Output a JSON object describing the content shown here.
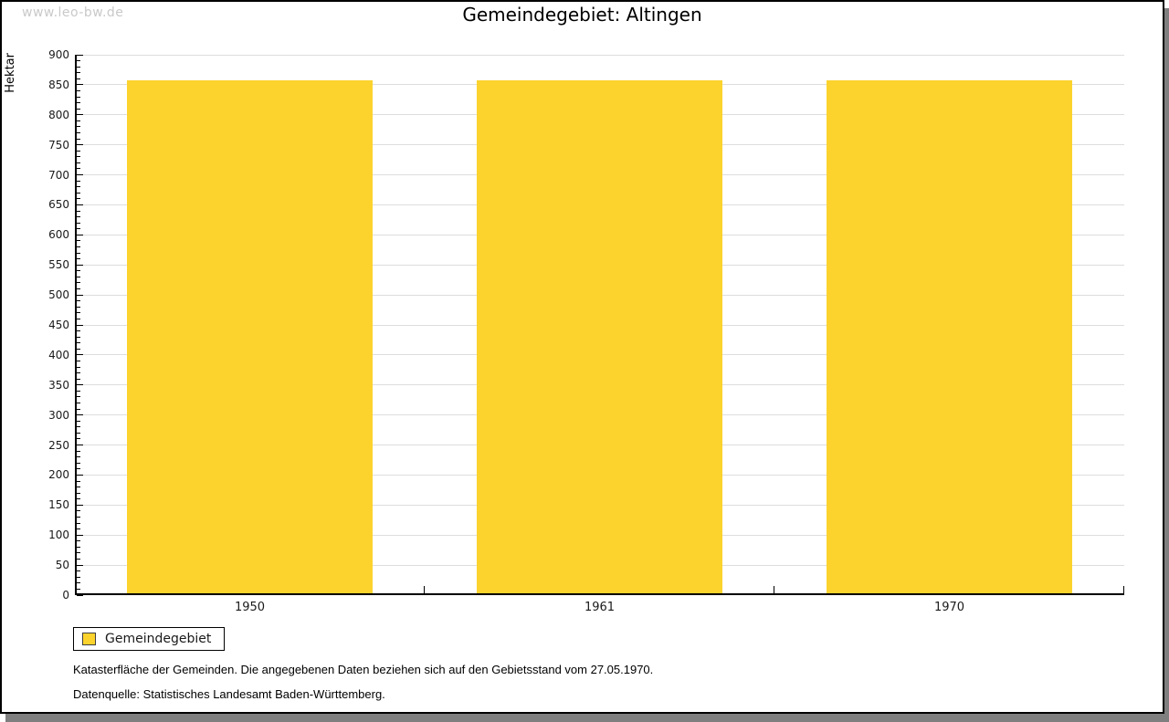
{
  "watermark": "www.leo-bw.de",
  "chart_data": {
    "type": "bar",
    "title": "Gemeindegebiet: Altingen",
    "categories": [
      "1950",
      "1961",
      "1970"
    ],
    "series": [
      {
        "name": "Gemeindegebiet",
        "values": [
          858,
          858,
          858
        ]
      }
    ],
    "xlabel": "",
    "ylabel": "Hektar",
    "ylim": [
      0,
      900
    ],
    "ytick_step": 50,
    "minor_tick_step": 10,
    "grid": true,
    "legend_position": "bottom-left",
    "bar_width_fraction": 0.7,
    "colors": {
      "bar": "#FCD32D",
      "grid": "#DDDDDD",
      "axis": "#000000",
      "tick_label": "#1A1A1A",
      "watermark": "#C9C9C9",
      "frame_shadow": "#7F7F7F"
    }
  },
  "footnotes": [
    "Katasterfläche der Gemeinden. Die angegebenen Daten beziehen sich auf den Gebietsstand vom 27.05.1970.",
    "Datenquelle: Statistisches Landesamt Baden-Württemberg."
  ]
}
